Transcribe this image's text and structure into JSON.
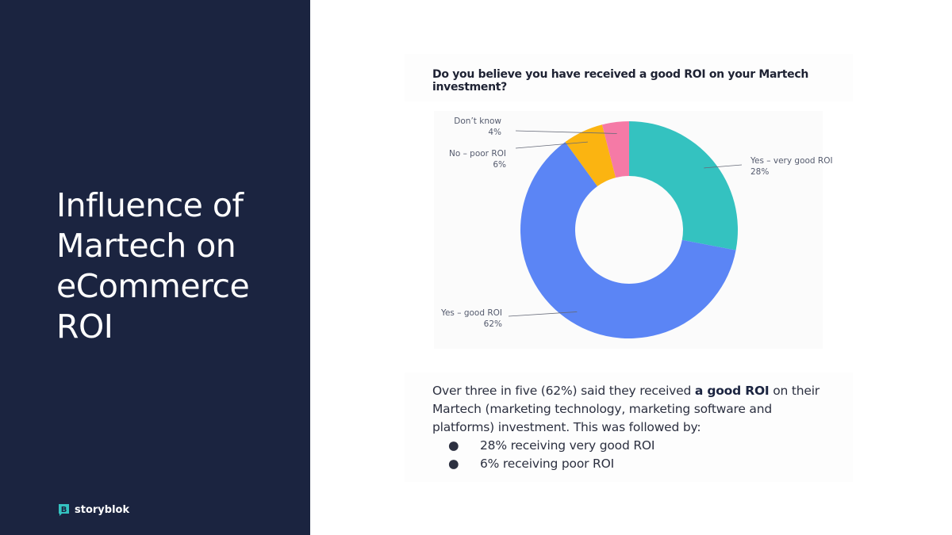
{
  "slide": {
    "title": "Influence of Martech on eCommerce ROI",
    "logo_text": "storyblok"
  },
  "colors": {
    "panel": "#1b2440",
    "yes_very_good": "#34c2c0",
    "yes_good": "#5b85f5",
    "no_poor": "#fbb411",
    "dont_know": "#f57aa6",
    "logo_mark": "#34c2c0"
  },
  "chart_data": {
    "type": "pie",
    "title": "Do you believe you have received a good ROI on your Martech investment?",
    "slices": [
      {
        "label": "Yes – very good ROI",
        "value": 28,
        "value_label": "28%",
        "color": "#34c2c0"
      },
      {
        "label": "Yes – good ROI",
        "value": 62,
        "value_label": "62%",
        "color": "#5b85f5"
      },
      {
        "label": "No – poor ROI",
        "value": 6,
        "value_label": "6%",
        "color": "#fbb411"
      },
      {
        "label": "Don’t know",
        "value": 4,
        "value_label": "4%",
        "color": "#f57aa6"
      }
    ]
  },
  "description": {
    "intro_before": "Over three in five (62%) said they received ",
    "intro_bold": "a good ROI",
    "intro_after": " on their Martech (marketing technology, marketing software and platforms) investment. This was followed by:",
    "bullets": [
      "28% receiving very good ROI",
      "6% receiving poor ROI"
    ]
  }
}
